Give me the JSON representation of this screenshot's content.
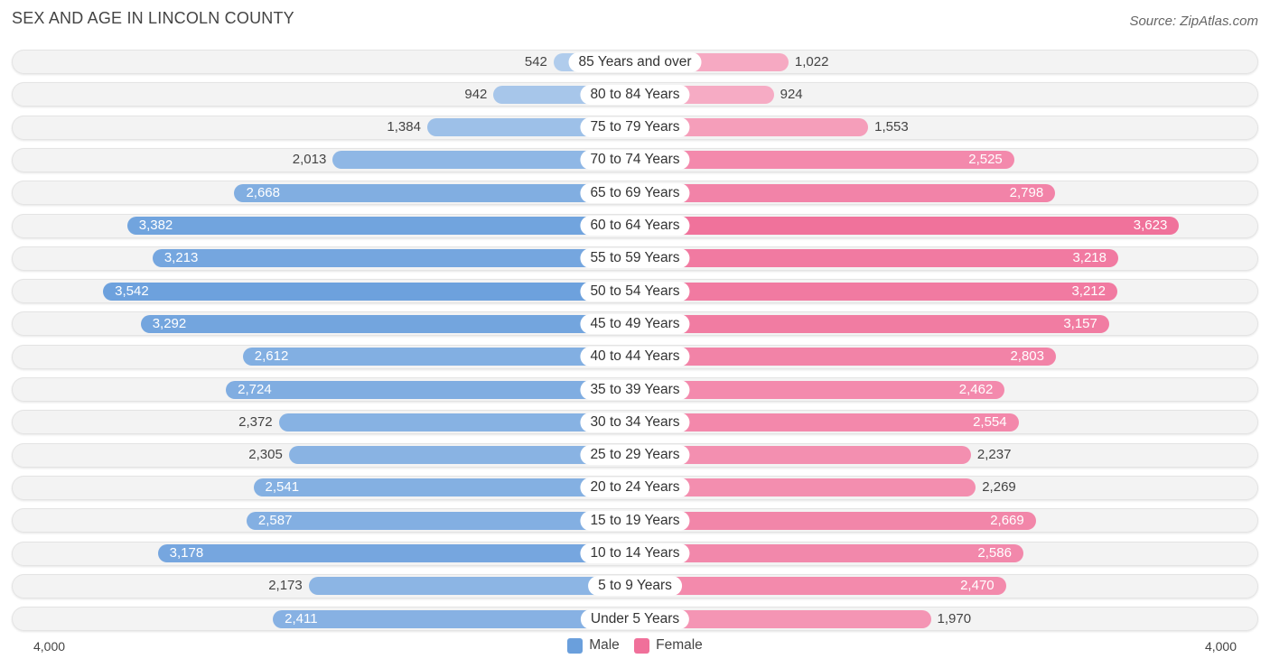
{
  "header": {
    "title": "SEX AND AGE IN LINCOLN COUNTY",
    "source": "Source: ZipAtlas.com"
  },
  "chart_data": {
    "type": "bar",
    "orientation": "horizontal-diverging",
    "categories": [
      "85 Years and over",
      "80 to 84 Years",
      "75 to 79 Years",
      "70 to 74 Years",
      "65 to 69 Years",
      "60 to 64 Years",
      "55 to 59 Years",
      "50 to 54 Years",
      "45 to 49 Years",
      "40 to 44 Years",
      "35 to 39 Years",
      "30 to 34 Years",
      "25 to 29 Years",
      "20 to 24 Years",
      "15 to 19 Years",
      "10 to 14 Years",
      "5 to 9 Years",
      "Under 5 Years"
    ],
    "series": [
      {
        "name": "Male",
        "color": "#6a9fdc",
        "values": [
          542,
          942,
          1384,
          2013,
          2668,
          3382,
          3213,
          3542,
          3292,
          2612,
          2724,
          2372,
          2305,
          2541,
          2587,
          3178,
          2173,
          2411
        ]
      },
      {
        "name": "Female",
        "color": "#f0709a",
        "values": [
          1022,
          924,
          1553,
          2525,
          2798,
          3623,
          3218,
          3212,
          3157,
          2803,
          2462,
          2554,
          2237,
          2269,
          2669,
          2586,
          2470,
          1970
        ]
      }
    ],
    "value_labels": {
      "Male": [
        "542",
        "942",
        "1,384",
        "2,013",
        "2,668",
        "3,382",
        "3,213",
        "3,542",
        "3,292",
        "2,612",
        "2,724",
        "2,372",
        "2,305",
        "2,541",
        "2,587",
        "3,178",
        "2,173",
        "2,411"
      ],
      "Female": [
        "1,022",
        "924",
        "1,553",
        "2,525",
        "2,798",
        "3,623",
        "3,218",
        "3,212",
        "3,157",
        "2,803",
        "2,462",
        "2,554",
        "2,237",
        "2,269",
        "2,669",
        "2,586",
        "2,470",
        "1,970"
      ]
    },
    "xlim": [
      0,
      4000
    ],
    "axis_tick_labels": {
      "left": "4,000",
      "right": "4,000"
    },
    "legend": {
      "placement": "bottom-center",
      "entries": [
        "Male",
        "Female"
      ]
    }
  }
}
